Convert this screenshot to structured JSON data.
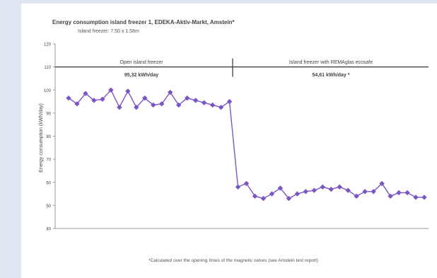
{
  "chart_data": {
    "type": "line",
    "title": "Energy consumption island freezer 1, EDEKA-Aktiv-Markt, Amstein*",
    "subtitle": "Island freezer: 7.50 x 1.58m",
    "xlabel": "",
    "ylabel": "Energy consumption (kWh/day)",
    "ylim": [
      40,
      120
    ],
    "yticks": [
      "40",
      "50",
      "60",
      "70",
      "80",
      "90",
      "100",
      "110",
      "120"
    ],
    "grid": false,
    "segments": [
      {
        "label": "Open island freezer",
        "value_text": "95,32 kWh/day"
      },
      {
        "label": "Island freezer with REMAglas ecosafe",
        "value_text": "54,61 kWh/day *"
      }
    ],
    "series": [
      {
        "color": "#7b55c4",
        "values": [
          96.5,
          94,
          98.5,
          95.5,
          96,
          100,
          92.5,
          99.5,
          92.5,
          96.5,
          93.5,
          94,
          99,
          93.5,
          96.5,
          95.5,
          94.5,
          93.5,
          92.5,
          95,
          58,
          59.5,
          54,
          53,
          55,
          57.5,
          53,
          55,
          56,
          56.5,
          58,
          57,
          58,
          56.5,
          54,
          56,
          56,
          59.5,
          54,
          55.5,
          55.5,
          53.5,
          53.5
        ]
      }
    ],
    "footnote": "*Calculated over the opening times of the magnetic valves (see Amstein test report)"
  },
  "colors": {
    "background": "#dfe6f2",
    "panel": "#ffffff",
    "line": "#7b55c4",
    "axis": "#555555",
    "text": "#333333"
  }
}
